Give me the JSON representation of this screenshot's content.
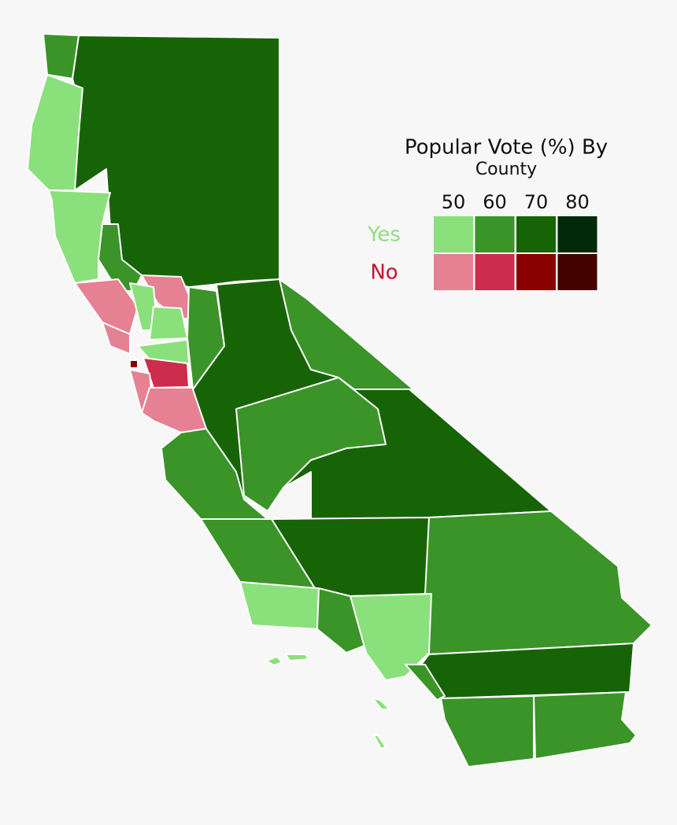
{
  "legend": {
    "title": "Popular Vote (%) By",
    "subtitle": "County",
    "thresholds": [
      "50",
      "60",
      "70",
      "80"
    ],
    "rows": [
      {
        "label": "Yes",
        "color": "#8ee07c",
        "swatches": [
          "#8ae07a",
          "#3a9428",
          "#176406",
          "#002a0a"
        ]
      },
      {
        "label": "No",
        "color": "#c8102e",
        "swatches": [
          "#e58193",
          "#cc2d4c",
          "#8b0000",
          "#450000"
        ]
      }
    ]
  }
}
